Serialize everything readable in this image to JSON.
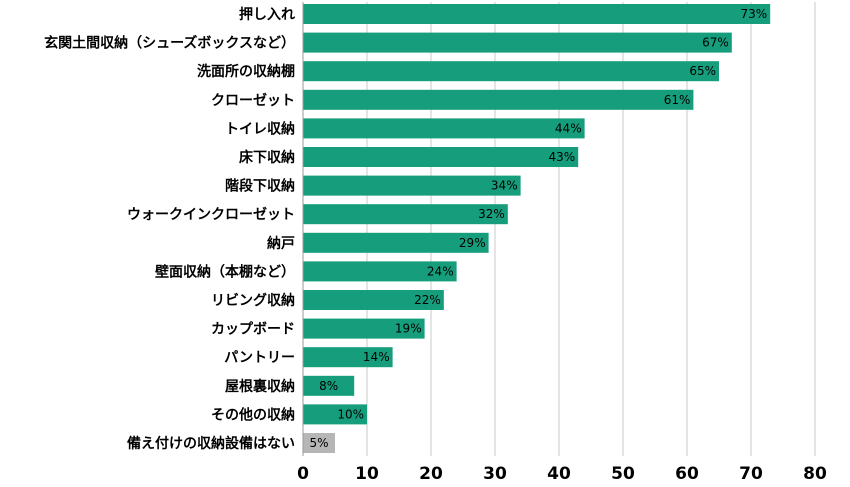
{
  "chart_data": {
    "type": "bar",
    "orientation": "horizontal",
    "title": "",
    "xlabel": "",
    "ylabel": "",
    "xlim": [
      0,
      80
    ],
    "x_ticks": [
      "0",
      "10",
      "20",
      "30",
      "40",
      "50",
      "60",
      "70",
      "80"
    ],
    "grid": true,
    "legend": "none",
    "colors": {
      "bar": "#159d7c",
      "highlight": "#b6b6b6",
      "grid": "#c9c9c9",
      "text": "#000000"
    },
    "bars": [
      {
        "category": "押し入れ",
        "value": 73,
        "label": "73%",
        "color": "bar"
      },
      {
        "category": "玄関土間収納（シューズボックスなど）",
        "value": 67,
        "label": "67%",
        "color": "bar"
      },
      {
        "category": "洗面所の収納棚",
        "value": 65,
        "label": "65%",
        "color": "bar"
      },
      {
        "category": "クローゼット",
        "value": 61,
        "label": "61%",
        "color": "bar"
      },
      {
        "category": "トイレ収納",
        "value": 44,
        "label": "44%",
        "color": "bar"
      },
      {
        "category": "床下収納",
        "value": 43,
        "label": "43%",
        "color": "bar"
      },
      {
        "category": "階段下収納",
        "value": 34,
        "label": "34%",
        "color": "bar"
      },
      {
        "category": "ウォークインクローゼット",
        "value": 32,
        "label": "32%",
        "color": "bar"
      },
      {
        "category": "納戸",
        "value": 29,
        "label": "29%",
        "color": "bar"
      },
      {
        "category": "壁面収納（本棚など）",
        "value": 24,
        "label": "24%",
        "color": "bar"
      },
      {
        "category": "リビング収納",
        "value": 22,
        "label": "22%",
        "color": "bar"
      },
      {
        "category": "カップボード",
        "value": 19,
        "label": "19%",
        "color": "bar"
      },
      {
        "category": "パントリー",
        "value": 14,
        "label": "14%",
        "color": "bar"
      },
      {
        "category": "屋根裏収納",
        "value": 8,
        "label": "8%",
        "color": "bar"
      },
      {
        "category": "その他の収納",
        "value": 10,
        "label": "10%",
        "color": "bar"
      },
      {
        "category": "備え付けの収納設備はない",
        "value": 5,
        "label": "5%",
        "color": "highlight"
      }
    ]
  }
}
